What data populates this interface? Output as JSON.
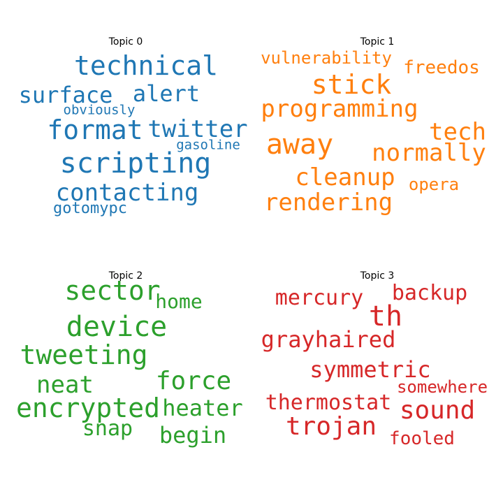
{
  "chart_data": {
    "type": "wordcloud",
    "topics": [
      {
        "title": "Topic 0",
        "color": "#1f77b4",
        "words": [
          "technical",
          "surface",
          "alert",
          "obviously",
          "format",
          "twitter",
          "gasoline",
          "scripting",
          "contacting",
          "gotomypc"
        ]
      },
      {
        "title": "Topic 1",
        "color": "#ff7f0e",
        "words": [
          "vulnerability",
          "freedos",
          "stick",
          "programming",
          "tech",
          "away",
          "normally",
          "cleanup",
          "opera",
          "rendering"
        ]
      },
      {
        "title": "Topic 2",
        "color": "#2ca02c",
        "words": [
          "sector",
          "home",
          "device",
          "tweeting",
          "force",
          "neat",
          "encrypted",
          "heater",
          "snap",
          "begin"
        ]
      },
      {
        "title": "Topic 3",
        "color": "#d62728",
        "words": [
          "mercury",
          "backup",
          "th",
          "grayhaired",
          "symmetric",
          "somewhere",
          "thermostat",
          "sound",
          "trojan",
          "fooled"
        ]
      }
    ]
  }
}
